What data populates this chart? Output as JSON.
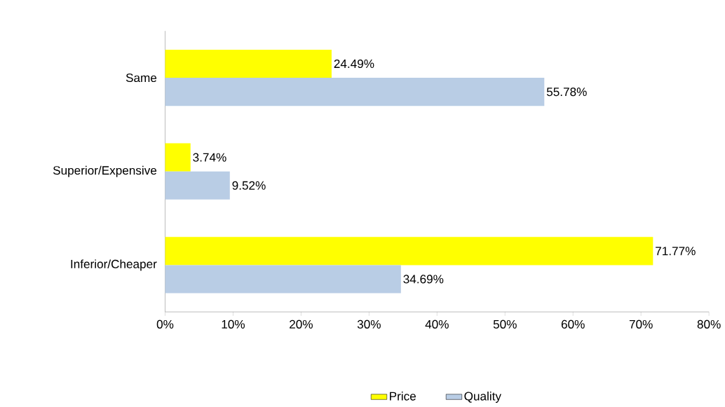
{
  "chart_data": {
    "type": "bar",
    "orientation": "horizontal",
    "categories": [
      "Same",
      "Superior/Expensive",
      "Inferior/Cheaper"
    ],
    "series": [
      {
        "name": "Price",
        "color": "#ffff00",
        "values": [
          24.49,
          3.74,
          71.77
        ],
        "value_labels": [
          "24.49%",
          "3.74%",
          "71.77%"
        ]
      },
      {
        "name": "Quality",
        "color": "#b9cde5",
        "values": [
          55.78,
          9.52,
          34.69
        ],
        "value_labels": [
          "55.78%",
          "9.52%",
          "34.69%"
        ]
      }
    ],
    "xlim": [
      0,
      80
    ],
    "xticks": [
      {
        "value": 0,
        "label": "0%"
      },
      {
        "value": 10,
        "label": "10%"
      },
      {
        "value": 20,
        "label": "20%"
      },
      {
        "value": 30,
        "label": "30%"
      },
      {
        "value": 40,
        "label": "40%"
      },
      {
        "value": 50,
        "label": "50%"
      },
      {
        "value": 60,
        "label": "60%"
      },
      {
        "value": 70,
        "label": "70%"
      },
      {
        "value": 80,
        "label": "80%"
      }
    ],
    "legend": "bottom"
  }
}
